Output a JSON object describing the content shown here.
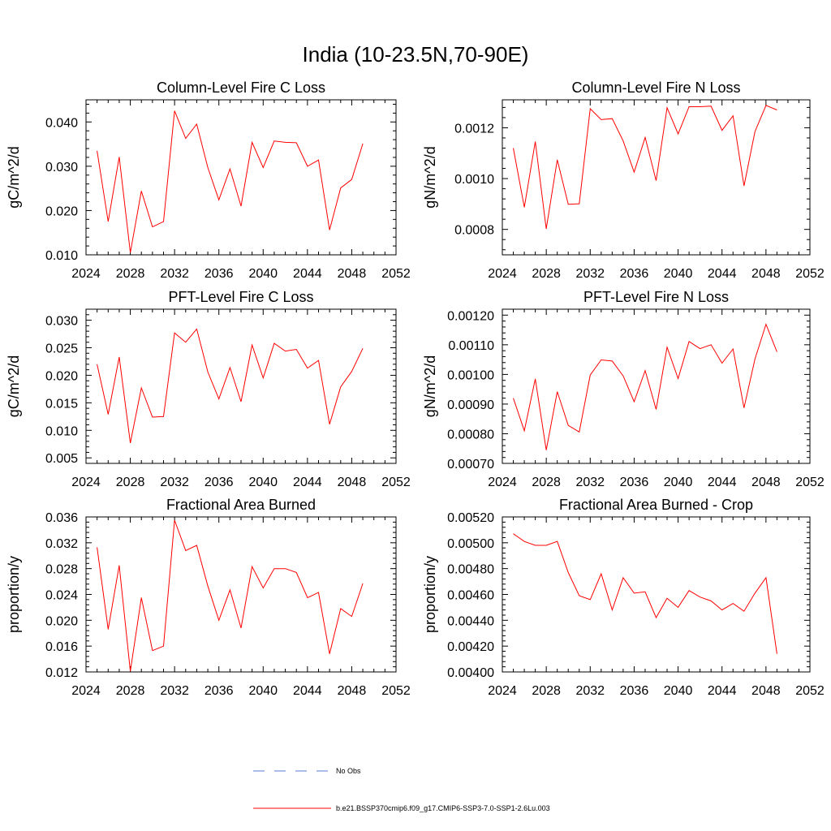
{
  "figure": {
    "title": "India (10-23.5N,70-90E)",
    "line_color": "#ff0000",
    "obs_color": "#5b7bd5"
  },
  "legend": {
    "obs_label": "No Obs",
    "model_label": "b.e21.BSSP370cmip6.f09_g17.CMIP6-SSP3-7.0-SSP1-2.6Lu.003"
  },
  "chart_data": [
    {
      "type": "line",
      "title": "Column-Level Fire C Loss",
      "ylabel": "gC/m^2/d",
      "xlabel": "",
      "xlim": [
        2024,
        2052
      ],
      "ylim": [
        0.01,
        0.045
      ],
      "xticks": [
        2024,
        2028,
        2032,
        2036,
        2040,
        2044,
        2048,
        2052
      ],
      "yticks": [
        "0.010",
        "0.020",
        "0.030",
        "0.040"
      ],
      "x": [
        2025,
        2026,
        2027,
        2028,
        2029,
        2030,
        2031,
        2032,
        2033,
        2034,
        2035,
        2036,
        2037,
        2038,
        2039,
        2040,
        2041,
        2042,
        2043,
        2044,
        2045,
        2046,
        2047,
        2048,
        2049
      ],
      "series": [
        {
          "values": [
            0.0335,
            0.0175,
            0.0321,
            0.0105,
            0.0244,
            0.0163,
            0.0175,
            0.0425,
            0.0363,
            0.0395,
            0.0297,
            0.0224,
            0.0294,
            0.021,
            0.0354,
            0.0297,
            0.0357,
            0.0354,
            0.0353,
            0.03,
            0.0314,
            0.0156,
            0.0251,
            0.027,
            0.0351
          ]
        }
      ]
    },
    {
      "type": "line",
      "title": "Column-Level Fire N Loss",
      "ylabel": "gN/m^2/d",
      "xlabel": "",
      "xlim": [
        2024,
        2052
      ],
      "ylim": [
        0.0007,
        0.00131
      ],
      "xticks": [
        2024,
        2028,
        2032,
        2036,
        2040,
        2044,
        2048,
        2052
      ],
      "yticks": [
        "0.0008",
        "0.0010",
        "0.0012"
      ],
      "x": [
        2025,
        2026,
        2027,
        2028,
        2029,
        2030,
        2031,
        2032,
        2033,
        2034,
        2035,
        2036,
        2037,
        2038,
        2039,
        2040,
        2041,
        2042,
        2043,
        2044,
        2045,
        2046,
        2047,
        2048,
        2049
      ],
      "series": [
        {
          "values": [
            0.00112,
            0.000887,
            0.001146,
            0.000802,
            0.001074,
            0.000899,
            0.000901,
            0.001275,
            0.001232,
            0.001236,
            0.001148,
            0.001025,
            0.001162,
            0.000992,
            0.001279,
            0.001176,
            0.001283,
            0.001283,
            0.001285,
            0.00119,
            0.001247,
            0.000971,
            0.001185,
            0.001288,
            0.00127
          ]
        }
      ]
    },
    {
      "type": "line",
      "title": "PFT-Level Fire C Loss",
      "ylabel": "gC/m^2/d",
      "xlabel": "",
      "xlim": [
        2024,
        2052
      ],
      "ylim": [
        0.004,
        0.032
      ],
      "xticks": [
        2024,
        2028,
        2032,
        2036,
        2040,
        2044,
        2048,
        2052
      ],
      "yticks": [
        "0.005",
        "0.010",
        "0.015",
        "0.020",
        "0.025",
        "0.030"
      ],
      "x": [
        2025,
        2026,
        2027,
        2028,
        2029,
        2030,
        2031,
        2032,
        2033,
        2034,
        2035,
        2036,
        2037,
        2038,
        2039,
        2040,
        2041,
        2042,
        2043,
        2044,
        2045,
        2046,
        2047,
        2048,
        2049
      ],
      "series": [
        {
          "values": [
            0.022,
            0.0129,
            0.0233,
            0.0077,
            0.0177,
            0.0124,
            0.0125,
            0.0277,
            0.026,
            0.0284,
            0.0206,
            0.0157,
            0.0214,
            0.0152,
            0.0255,
            0.0195,
            0.0258,
            0.0244,
            0.0247,
            0.0213,
            0.0227,
            0.0111,
            0.0179,
            0.0207,
            0.0249
          ]
        }
      ]
    },
    {
      "type": "line",
      "title": "PFT-Level Fire N Loss",
      "ylabel": "gN/m^2/d",
      "xlabel": "",
      "xlim": [
        2024,
        2052
      ],
      "ylim": [
        0.0007,
        0.00122
      ],
      "xticks": [
        2024,
        2028,
        2032,
        2036,
        2040,
        2044,
        2048,
        2052
      ],
      "yticks": [
        "0.00070",
        "0.00080",
        "0.00090",
        "0.00100",
        "0.00110",
        "0.00120"
      ],
      "x": [
        2025,
        2026,
        2027,
        2028,
        2029,
        2030,
        2031,
        2032,
        2033,
        2034,
        2035,
        2036,
        2037,
        2038,
        2039,
        2040,
        2041,
        2042,
        2043,
        2044,
        2045,
        2046,
        2047,
        2048,
        2049
      ],
      "series": [
        {
          "values": [
            0.00092,
            0.00081,
            0.000985,
            0.000745,
            0.000942,
            0.000828,
            0.000806,
            0.000998,
            0.001049,
            0.001045,
            0.000995,
            0.000908,
            0.001013,
            0.000882,
            0.001092,
            0.000986,
            0.001111,
            0.001087,
            0.0011,
            0.001038,
            0.001086,
            0.000887,
            0.001052,
            0.001169,
            0.001076
          ]
        }
      ]
    },
    {
      "type": "line",
      "title": "Fractional Area Burned",
      "ylabel": "proportion/y",
      "xlabel": "",
      "xlim": [
        2024,
        2052
      ],
      "ylim": [
        0.012,
        0.036
      ],
      "xticks": [
        2024,
        2028,
        2032,
        2036,
        2040,
        2044,
        2048,
        2052
      ],
      "yticks": [
        "0.012",
        "0.016",
        "0.020",
        "0.024",
        "0.028",
        "0.032",
        "0.036"
      ],
      "x": [
        2025,
        2026,
        2027,
        2028,
        2029,
        2030,
        2031,
        2032,
        2033,
        2034,
        2035,
        2036,
        2037,
        2038,
        2039,
        2040,
        2041,
        2042,
        2043,
        2044,
        2045,
        2046,
        2047,
        2048,
        2049
      ],
      "series": [
        {
          "values": [
            0.0313,
            0.0186,
            0.0285,
            0.0121,
            0.0235,
            0.0153,
            0.016,
            0.0355,
            0.0308,
            0.0316,
            0.0253,
            0.02,
            0.0247,
            0.0188,
            0.0283,
            0.025,
            0.028,
            0.028,
            0.0274,
            0.0235,
            0.0243,
            0.0148,
            0.0218,
            0.0206,
            0.0257
          ]
        }
      ]
    },
    {
      "type": "line",
      "title": "Fractional Area Burned - Crop",
      "ylabel": "proportion/y",
      "xlabel": "",
      "xlim": [
        2024,
        2052
      ],
      "ylim": [
        0.004,
        0.0052
      ],
      "xticks": [
        2024,
        2028,
        2032,
        2036,
        2040,
        2044,
        2048,
        2052
      ],
      "yticks": [
        "0.00400",
        "0.00420",
        "0.00440",
        "0.00460",
        "0.00480",
        "0.00500",
        "0.00520"
      ],
      "x": [
        2025,
        2026,
        2027,
        2028,
        2029,
        2030,
        2031,
        2032,
        2033,
        2034,
        2035,
        2036,
        2037,
        2038,
        2039,
        2040,
        2041,
        2042,
        2043,
        2044,
        2045,
        2046,
        2047,
        2048,
        2049
      ],
      "series": [
        {
          "values": [
            0.00507,
            0.00501,
            0.00498,
            0.00498,
            0.00501,
            0.00477,
            0.00459,
            0.00456,
            0.00476,
            0.00448,
            0.00473,
            0.00461,
            0.00462,
            0.00442,
            0.00457,
            0.0045,
            0.00463,
            0.00458,
            0.00455,
            0.00448,
            0.00453,
            0.00447,
            0.00461,
            0.00473,
            0.00414
          ]
        }
      ]
    }
  ]
}
